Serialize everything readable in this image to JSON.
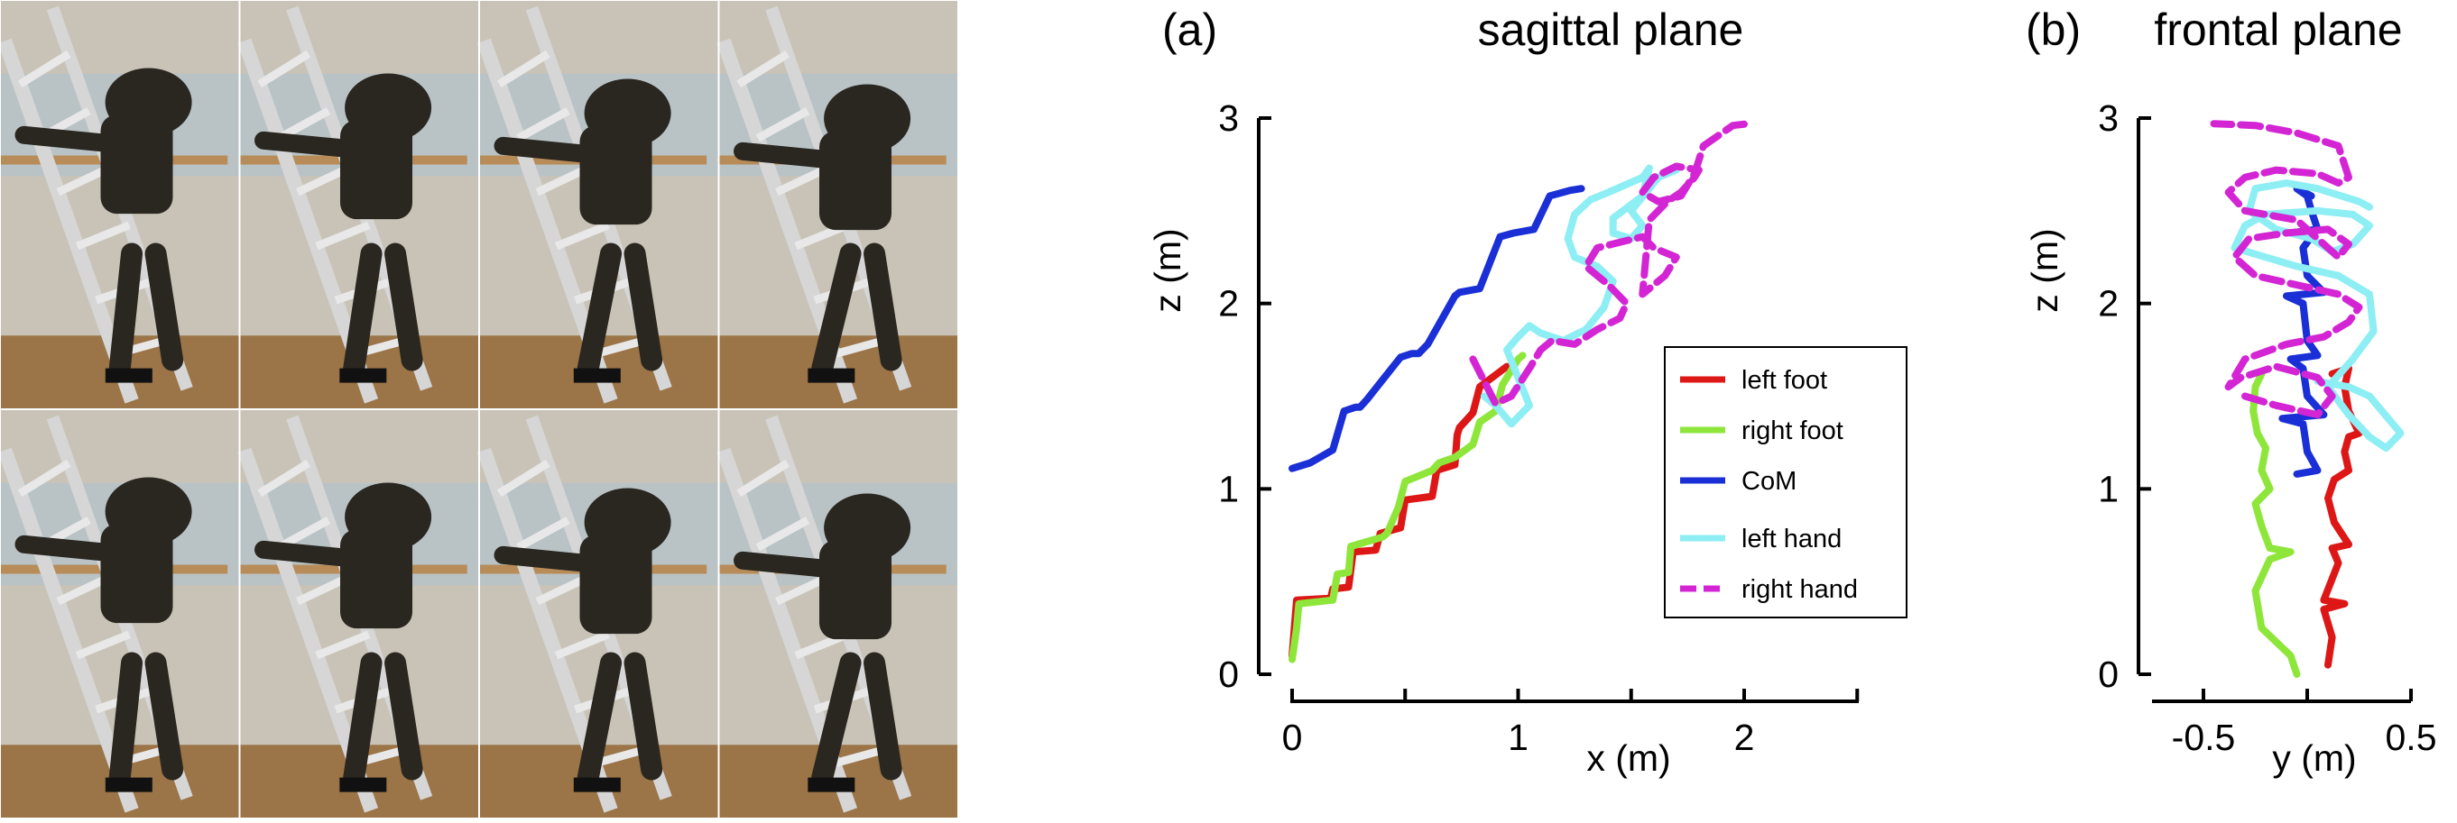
{
  "photos": {
    "rows": 2,
    "cols": 4,
    "frames": [
      "frame-1",
      "frame-2",
      "frame-3",
      "frame-4",
      "frame-5",
      "frame-6",
      "frame-7",
      "frame-8"
    ],
    "colors": {
      "frame": "#a9c3d6",
      "wood": "#b88c58",
      "robot": "#2a2620",
      "rail": "#d6d6d6",
      "floor": "#9b7447"
    }
  },
  "chart_data": [
    {
      "type": "line",
      "panel_label": "(a)",
      "title": "sagittal plane",
      "xlabel": "x (m)",
      "ylabel": "z (m)",
      "xlim": [
        0,
        2.5
      ],
      "ylim": [
        0,
        3
      ],
      "xticks": [
        0,
        1,
        2
      ],
      "yticks": [
        0,
        1,
        2,
        3
      ],
      "legend": {
        "position": "right",
        "entries": [
          {
            "name": "left foot",
            "color": "#dd1616",
            "dashed": false
          },
          {
            "name": "right foot",
            "color": "#8ee63a",
            "dashed": false
          },
          {
            "name": "CoM",
            "color": "#1a2fd6",
            "dashed": false
          },
          {
            "name": "left hand",
            "color": "#8deef4",
            "dashed": false
          },
          {
            "name": "right hand",
            "color": "#d425d4",
            "dashed": true
          }
        ]
      },
      "series": [
        {
          "name": "left foot",
          "color": "#dd1616",
          "dashed": false,
          "x": [
            0.0,
            0.01,
            0.02,
            0.17,
            0.18,
            0.25,
            0.27,
            0.37,
            0.39,
            0.48,
            0.5,
            0.62,
            0.64,
            0.72,
            0.73,
            0.74,
            0.8,
            0.83,
            0.95
          ],
          "y": [
            0.1,
            0.25,
            0.4,
            0.41,
            0.46,
            0.47,
            0.66,
            0.67,
            0.76,
            0.79,
            0.94,
            0.96,
            1.1,
            1.13,
            1.29,
            1.33,
            1.41,
            1.55,
            1.66
          ]
        },
        {
          "name": "right foot",
          "color": "#8ee63a",
          "dashed": false,
          "x": [
            0.0,
            0.02,
            0.03,
            0.18,
            0.2,
            0.25,
            0.26,
            0.4,
            0.42,
            0.47,
            0.5,
            0.58,
            0.62,
            0.65,
            0.72,
            0.8,
            0.83,
            0.9,
            0.93,
            0.97,
            1.0,
            1.02
          ],
          "y": [
            0.08,
            0.25,
            0.38,
            0.4,
            0.54,
            0.55,
            0.69,
            0.74,
            0.76,
            0.9,
            1.04,
            1.08,
            1.1,
            1.14,
            1.17,
            1.24,
            1.36,
            1.42,
            1.56,
            1.64,
            1.7,
            1.72
          ]
        },
        {
          "name": "CoM",
          "color": "#1a2fd6",
          "dashed": false,
          "x": [
            0.0,
            0.08,
            0.18,
            0.23,
            0.28,
            0.3,
            0.33,
            0.48,
            0.53,
            0.56,
            0.6,
            0.72,
            0.74,
            0.83,
            0.92,
            0.98,
            1.07,
            1.14,
            1.17,
            1.2,
            1.23,
            1.28
          ],
          "y": [
            1.11,
            1.14,
            1.21,
            1.42,
            1.44,
            1.44,
            1.48,
            1.71,
            1.73,
            1.73,
            1.78,
            2.04,
            2.06,
            2.08,
            2.36,
            2.38,
            2.4,
            2.58,
            2.59,
            2.6,
            2.61,
            2.62
          ]
        },
        {
          "name": "left hand",
          "color": "#8deef4",
          "dashed": false,
          "x": [
            0.85,
            0.9,
            0.97,
            1.05,
            1.0,
            0.95,
            1.0,
            1.05,
            1.1,
            1.2,
            1.3,
            1.38,
            1.42,
            1.35,
            1.25,
            1.22,
            1.25,
            1.32,
            1.4,
            1.55,
            1.58,
            1.55,
            1.42,
            1.42,
            1.5,
            1.55,
            1.5,
            1.58,
            1.62,
            1.7
          ],
          "y": [
            1.5,
            1.45,
            1.35,
            1.45,
            1.6,
            1.75,
            1.82,
            1.88,
            1.84,
            1.8,
            1.86,
            1.98,
            2.12,
            2.2,
            2.25,
            2.35,
            2.48,
            2.56,
            2.6,
            2.68,
            2.73,
            2.58,
            2.46,
            2.38,
            2.35,
            2.42,
            2.5,
            2.62,
            2.68,
            2.72
          ]
        },
        {
          "name": "right hand",
          "color": "#d425d4",
          "dashed": true,
          "x": [
            0.8,
            0.85,
            0.9,
            0.97,
            1.05,
            1.1,
            1.15,
            1.25,
            1.35,
            1.45,
            1.48,
            1.4,
            1.3,
            1.35,
            1.45,
            1.55,
            1.6,
            1.7,
            1.65,
            1.55,
            1.58,
            1.66,
            1.72,
            1.78,
            1.8,
            1.7,
            1.6,
            1.55,
            1.62,
            1.72,
            1.78,
            1.82,
            1.95,
            2.02
          ],
          "y": [
            1.7,
            1.58,
            1.46,
            1.5,
            1.65,
            1.75,
            1.8,
            1.78,
            1.86,
            1.92,
            2.0,
            2.1,
            2.2,
            2.3,
            2.33,
            2.36,
            2.3,
            2.25,
            2.15,
            2.05,
            2.45,
            2.55,
            2.6,
            2.68,
            2.72,
            2.74,
            2.68,
            2.6,
            2.55,
            2.58,
            2.7,
            2.85,
            2.96,
            2.97
          ]
        }
      ]
    },
    {
      "type": "line",
      "panel_label": "(b)",
      "title": "frontal plane",
      "xlabel": "y (m)",
      "ylabel": "z (m)",
      "xlim": [
        -0.5,
        0.5
      ],
      "ylim": [
        0,
        3
      ],
      "xticks": [
        -0.5,
        0.5
      ],
      "yticks": [
        0,
        1,
        2,
        3
      ],
      "series": [
        {
          "name": "left foot",
          "color": "#dd1616",
          "dashed": false,
          "x": [
            0.1,
            0.12,
            0.08,
            0.18,
            0.08,
            0.15,
            0.12,
            0.2,
            0.13,
            0.1,
            0.13,
            0.2,
            0.18,
            0.2,
            0.25,
            0.2,
            0.18,
            0.2,
            0.12
          ],
          "y": [
            0.05,
            0.2,
            0.35,
            0.38,
            0.4,
            0.6,
            0.68,
            0.7,
            0.82,
            0.95,
            1.05,
            1.1,
            1.2,
            1.28,
            1.3,
            1.42,
            1.55,
            1.65,
            1.62
          ]
        },
        {
          "name": "right foot",
          "color": "#8ee63a",
          "dashed": false,
          "x": [
            -0.05,
            -0.08,
            -0.22,
            -0.25,
            -0.18,
            -0.08,
            -0.18,
            -0.22,
            -0.25,
            -0.18,
            -0.22,
            -0.2,
            -0.24,
            -0.26,
            -0.25,
            -0.22
          ],
          "y": [
            0.0,
            0.1,
            0.25,
            0.45,
            0.62,
            0.66,
            0.68,
            0.8,
            0.92,
            1.0,
            1.1,
            1.22,
            1.3,
            1.42,
            1.55,
            1.62
          ]
        },
        {
          "name": "CoM",
          "color": "#1a2fd6",
          "dashed": false,
          "x": [
            -0.05,
            0.05,
            0.0,
            -0.02,
            -0.12,
            0.08,
            0.0,
            -0.02,
            -0.08,
            0.05,
            0.0,
            -0.02,
            -0.1,
            0.08,
            0.0,
            -0.02,
            0.02,
            -0.08,
            0.05,
            0.02,
            0.0,
            -0.05,
            0.02
          ],
          "y": [
            1.08,
            1.1,
            1.2,
            1.35,
            1.38,
            1.4,
            1.5,
            1.65,
            1.7,
            1.72,
            1.8,
            2.0,
            2.04,
            2.06,
            2.15,
            2.3,
            2.36,
            2.38,
            2.4,
            2.5,
            2.58,
            2.62,
            2.58
          ]
        },
        {
          "name": "left hand",
          "color": "#8deef4",
          "dashed": false,
          "x": [
            0.05,
            0.2,
            0.3,
            0.45,
            0.38,
            0.3,
            0.2,
            0.1,
            0.22,
            0.32,
            0.3,
            0.15,
            -0.05,
            -0.2,
            -0.35,
            -0.3,
            -0.2,
            0.05,
            0.22,
            0.3,
            0.22,
            0.12,
            0.02,
            -0.15,
            -0.28,
            -0.25,
            -0.1,
            0.05,
            0.25,
            0.3
          ],
          "y": [
            1.58,
            1.55,
            1.5,
            1.3,
            1.22,
            1.28,
            1.4,
            1.55,
            1.7,
            1.85,
            2.05,
            2.15,
            2.2,
            2.25,
            2.3,
            2.42,
            2.48,
            2.5,
            2.48,
            2.42,
            2.32,
            2.28,
            2.35,
            2.4,
            2.5,
            2.62,
            2.65,
            2.62,
            2.55,
            2.52
          ]
        },
        {
          "name": "right hand",
          "color": "#d425d4",
          "dashed": true,
          "x": [
            -0.3,
            -0.15,
            0.05,
            0.12,
            0.05,
            -0.15,
            -0.32,
            -0.38,
            -0.3,
            -0.1,
            0.08,
            0.2,
            0.25,
            0.15,
            -0.05,
            -0.25,
            -0.35,
            -0.28,
            -0.1,
            0.1,
            0.2,
            0.15,
            -0.05,
            -0.3,
            -0.38,
            -0.3,
            -0.15,
            0.05,
            0.15,
            0.2,
            0.15,
            -0.05,
            -0.25,
            -0.45
          ],
          "y": [
            1.5,
            1.45,
            1.4,
            1.5,
            1.6,
            1.66,
            1.6,
            1.55,
            1.7,
            1.78,
            1.82,
            1.9,
            1.98,
            2.05,
            2.1,
            2.15,
            2.25,
            2.35,
            2.38,
            2.4,
            2.32,
            2.25,
            2.45,
            2.5,
            2.6,
            2.68,
            2.72,
            2.7,
            2.65,
            2.68,
            2.85,
            2.92,
            2.96,
            2.97
          ]
        }
      ]
    }
  ]
}
